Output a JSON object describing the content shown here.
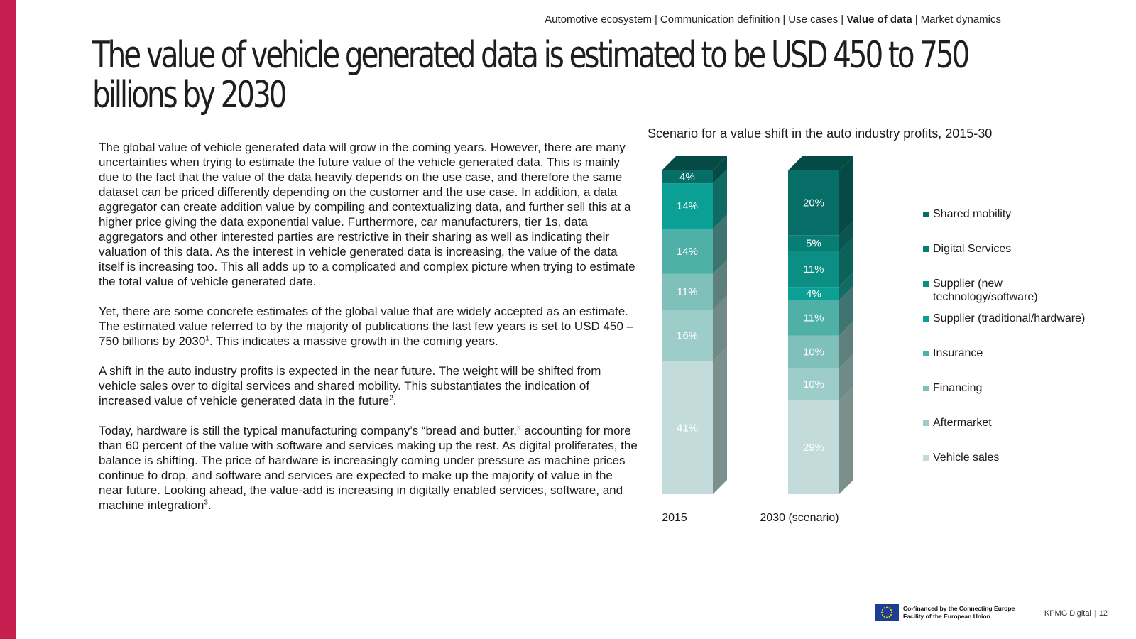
{
  "breadcrumb": {
    "items": [
      "Automotive ecosystem",
      "Communication definition",
      "Use cases",
      "Value of data",
      "Market dynamics"
    ],
    "separator": "|"
  },
  "title": "The value of vehicle generated data is estimated to be USD 450 to 750 billions by 2030",
  "body": {
    "p1": "The global value of vehicle generated data will grow in the coming years. However, there are many uncertainties when trying to estimate the future value of the vehicle generated data. This is mainly due to the fact that the value of the data heavily depends on the use case, and therefore the same dataset can be priced differently depending on the customer and the use case. In addition, a data aggregator can create addition value by compiling and contextualizing data, and further sell this at a higher price giving the data exponential value. Furthermore, car manufacturers, tier 1s, data aggregators and other interested parties are restrictive in their sharing as well as indicating their valuation of this data. As the interest in vehicle generated data is increasing, the value of the data itself is increasing too. This all adds up to a complicated and complex picture when trying to estimate the total value of vehicle generated date.",
    "p2": "Yet, there are some concrete estimates of the global value that are widely accepted as an estimate. The estimated value referred to by the majority of publications the last few years is set to USD 450 – 750 billions by 2030",
    "p2_sup": "1",
    "p2_end": ". This indicates a massive growth in the coming years.",
    "p3": "A shift in the auto industry profits is expected in the near future. The weight will be shifted from vehicle sales over to digital services and shared mobility. This substantiates the indication of increased value of vehicle generated data in the future",
    "p3_sup": "2",
    "p3_end": ".",
    "p4": "Today, hardware is still the typical manufacturing company’s “bread and butter,” accounting for more than 60 percent of the value with software and services making up the rest. As digital proliferates, the balance is shifting. The price of hardware is increasingly coming under pressure as machine prices continue to drop, and software and services are expected to make up the majority of value in the near future. Looking ahead, the value-add is increasing in digitally enabled services, software, and machine integration",
    "p4_sup": "3",
    "p4_end": "."
  },
  "chart_data": {
    "type": "bar",
    "stacked": true,
    "three_d": true,
    "title": "Scenario for a value shift in the auto industry profits, 2015-30",
    "categories": [
      "2015",
      "2030 (scenario)"
    ],
    "unit": "%",
    "ylim": [
      0,
      100
    ],
    "legend_position": "right",
    "series": [
      {
        "name": "Vehicle sales",
        "values": [
          41,
          29
        ],
        "color": "#c3dcdb",
        "side": "#7b8f8d",
        "label_color": "#ffffff"
      },
      {
        "name": "Aftermarket",
        "values": [
          16,
          10
        ],
        "color": "#9ccdc9",
        "side": "#6f8a87",
        "label_color": "#ffffff"
      },
      {
        "name": "Financing",
        "values": [
          11,
          10
        ],
        "color": "#80c0bb",
        "side": "#5e807c",
        "label_color": "#ffffff"
      },
      {
        "name": "Insurance",
        "values": [
          14,
          11
        ],
        "color": "#4fb0a8",
        "side": "#3f7571",
        "label_color": "#ffffff"
      },
      {
        "name": "Supplier (traditional/hardware)",
        "values": [
          14,
          4
        ],
        "color": "#0aa095",
        "side": "#0f6b64",
        "label_color": "#ffffff"
      },
      {
        "name": "Supplier (new technology/software)",
        "values": [
          0,
          11
        ],
        "color": "#0b8f85",
        "side": "#0d615b",
        "label_color": "#ffffff"
      },
      {
        "name": "Digital Services",
        "values": [
          0,
          5
        ],
        "color": "#087d74",
        "side": "#0a554f",
        "label_color": "#ffffff"
      },
      {
        "name": "Shared mobility",
        "values": [
          4,
          20
        ],
        "color": "#066e66",
        "side": "#054a45",
        "label_color": "#ffffff"
      }
    ],
    "legend_order": [
      "Shared mobility",
      "Digital Services",
      "Supplier (new technology/software)",
      "Supplier (traditional/hardware)",
      "Insurance",
      "Financing",
      "Aftermarket",
      "Vehicle sales"
    ],
    "legend_labels": {
      "Shared mobility": "Shared mobility",
      "Digital Services": "Digital Services",
      "Supplier (new technology/software)": "Supplier (new technology/software)",
      "Supplier (traditional/hardware)": "Supplier (traditional/hardware)",
      "Insurance": "Insurance",
      "Financing": "Financing",
      "Aftermarket": "Aftermarket",
      "Vehicle sales": "Vehicle sales"
    }
  },
  "footer": {
    "eu_text": "Co-financed by the Connecting Europe Facility of the European Union",
    "company": "KPMG Digital",
    "separator": "|",
    "page_number": "12"
  }
}
